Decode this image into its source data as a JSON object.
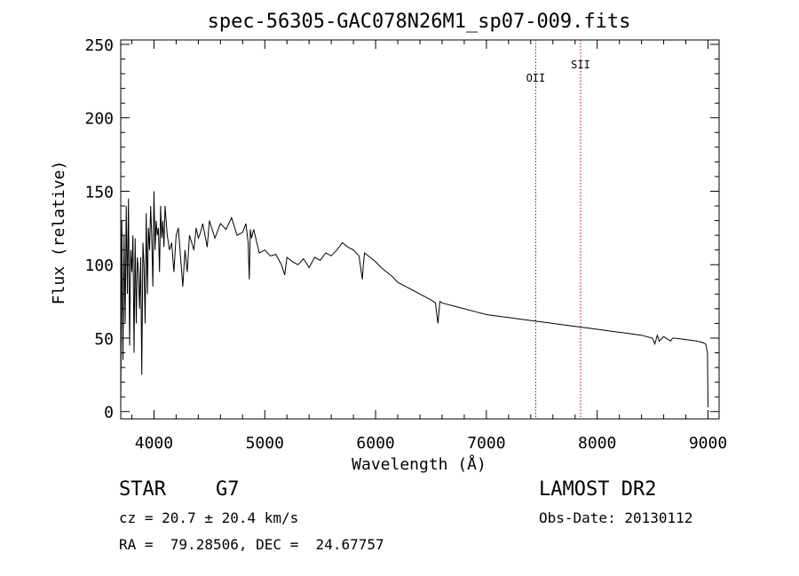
{
  "chart_data": {
    "type": "line",
    "title": "spec-56305-GAC078N26M1_sp07-009.fits",
    "xlabel": "Wavelength (Å)",
    "ylabel": "Flux (relative)",
    "xlim": [
      3700,
      9100
    ],
    "ylim": [
      -5,
      253
    ],
    "x_ticks": [
      4000,
      5000,
      6000,
      7000,
      8000,
      9000
    ],
    "y_ticks": [
      0,
      50,
      100,
      150,
      200,
      250
    ],
    "line_color": "#000000",
    "line_marker_color": "#aa0000",
    "emission_lines": [
      {
        "label": "OII",
        "wavelength": 7445
      },
      {
        "label": "SII",
        "wavelength": 7850
      }
    ],
    "series": [
      {
        "x": [
          3700,
          3710,
          3720,
          3730,
          3740,
          3750,
          3760,
          3770,
          3780,
          3790,
          3800,
          3810,
          3820,
          3830,
          3840,
          3850,
          3860,
          3870,
          3880,
          3890,
          3900,
          3910,
          3920,
          3930,
          3940,
          3950,
          3960,
          3970,
          3980,
          3990,
          4000,
          4010,
          4020,
          4030,
          4040,
          4050,
          4060,
          4070,
          4080,
          4090,
          4100,
          4120,
          4140,
          4160,
          4180,
          4200,
          4220,
          4240,
          4260,
          4280,
          4300,
          4320,
          4340,
          4360,
          4380,
          4400,
          4420,
          4440,
          4460,
          4480,
          4500,
          4550,
          4600,
          4650,
          4700,
          4750,
          4800,
          4830,
          4850,
          4860,
          4870,
          4880,
          4900,
          4950,
          5000,
          5050,
          5100,
          5150,
          5180,
          5200,
          5250,
          5300,
          5350,
          5400,
          5450,
          5500,
          5550,
          5600,
          5650,
          5700,
          5750,
          5800,
          5850,
          5880,
          5890,
          5900,
          5950,
          6000,
          6050,
          6100,
          6150,
          6200,
          6250,
          6300,
          6350,
          6400,
          6450,
          6500,
          6540,
          6563,
          6580,
          6600,
          6700,
          6800,
          6900,
          7000,
          7100,
          7200,
          7300,
          7400,
          7500,
          7600,
          7700,
          7800,
          7900,
          8000,
          8100,
          8200,
          8300,
          8400,
          8498,
          8520,
          8542,
          8560,
          8600,
          8662,
          8680,
          8700,
          8800,
          8900,
          8950,
          8980,
          8995,
          9000
        ],
        "values": [
          2,
          130,
          35,
          120,
          60,
          140,
          80,
          145,
          45,
          110,
          95,
          120,
          40,
          118,
          60,
          105,
          95,
          70,
          105,
          25,
          115,
          100,
          60,
          135,
          80,
          125,
          110,
          140,
          120,
          85,
          150,
          110,
          130,
          120,
          125,
          95,
          140,
          118,
          130,
          112,
          140,
          120,
          110,
          115,
          95,
          120,
          125,
          105,
          85,
          110,
          95,
          120,
          115,
          110,
          125,
          118,
          122,
          128,
          120,
          112,
          130,
          118,
          128,
          124,
          132,
          120,
          122,
          128,
          115,
          90,
          124,
          118,
          124,
          108,
          110,
          106,
          107,
          100,
          93,
          105,
          102,
          100,
          104,
          98,
          105,
          103,
          108,
          106,
          110,
          115,
          112,
          110,
          106,
          90,
          100,
          108,
          105,
          102,
          98,
          95,
          92,
          88,
          86,
          84,
          82,
          80,
          78,
          76,
          74,
          60,
          75,
          74,
          72,
          70,
          68,
          66,
          65,
          64,
          63,
          62,
          61,
          60,
          59,
          58,
          57,
          56,
          55,
          54,
          53,
          52,
          50,
          46,
          52,
          48,
          51,
          48,
          50,
          50,
          49,
          48,
          47,
          46,
          40,
          3
        ]
      }
    ],
    "title_text": "spec-56305-GAC078N26M1_sp07-009.fits",
    "info": {
      "class": "STAR",
      "subclass": "G7",
      "cz": "cz = 20.7 ± 20.4 km/s",
      "radec": "RA =  79.28506, DEC =  24.67757",
      "release": "LAMOST DR2",
      "obs_date": "Obs-Date: 20130112"
    }
  }
}
